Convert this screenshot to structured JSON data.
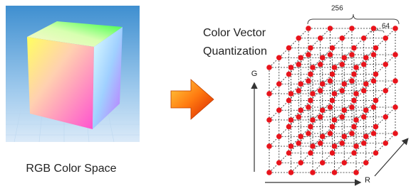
{
  "left_panel": {
    "caption": "RGB Color Space"
  },
  "right_panel": {
    "title_lines": [
      "Color Vector",
      "Quantization"
    ],
    "dimension_labels": {
      "outer": "256",
      "inner": "64"
    },
    "axis_labels": {
      "vertical": "G",
      "horizontal": "R"
    }
  }
}
